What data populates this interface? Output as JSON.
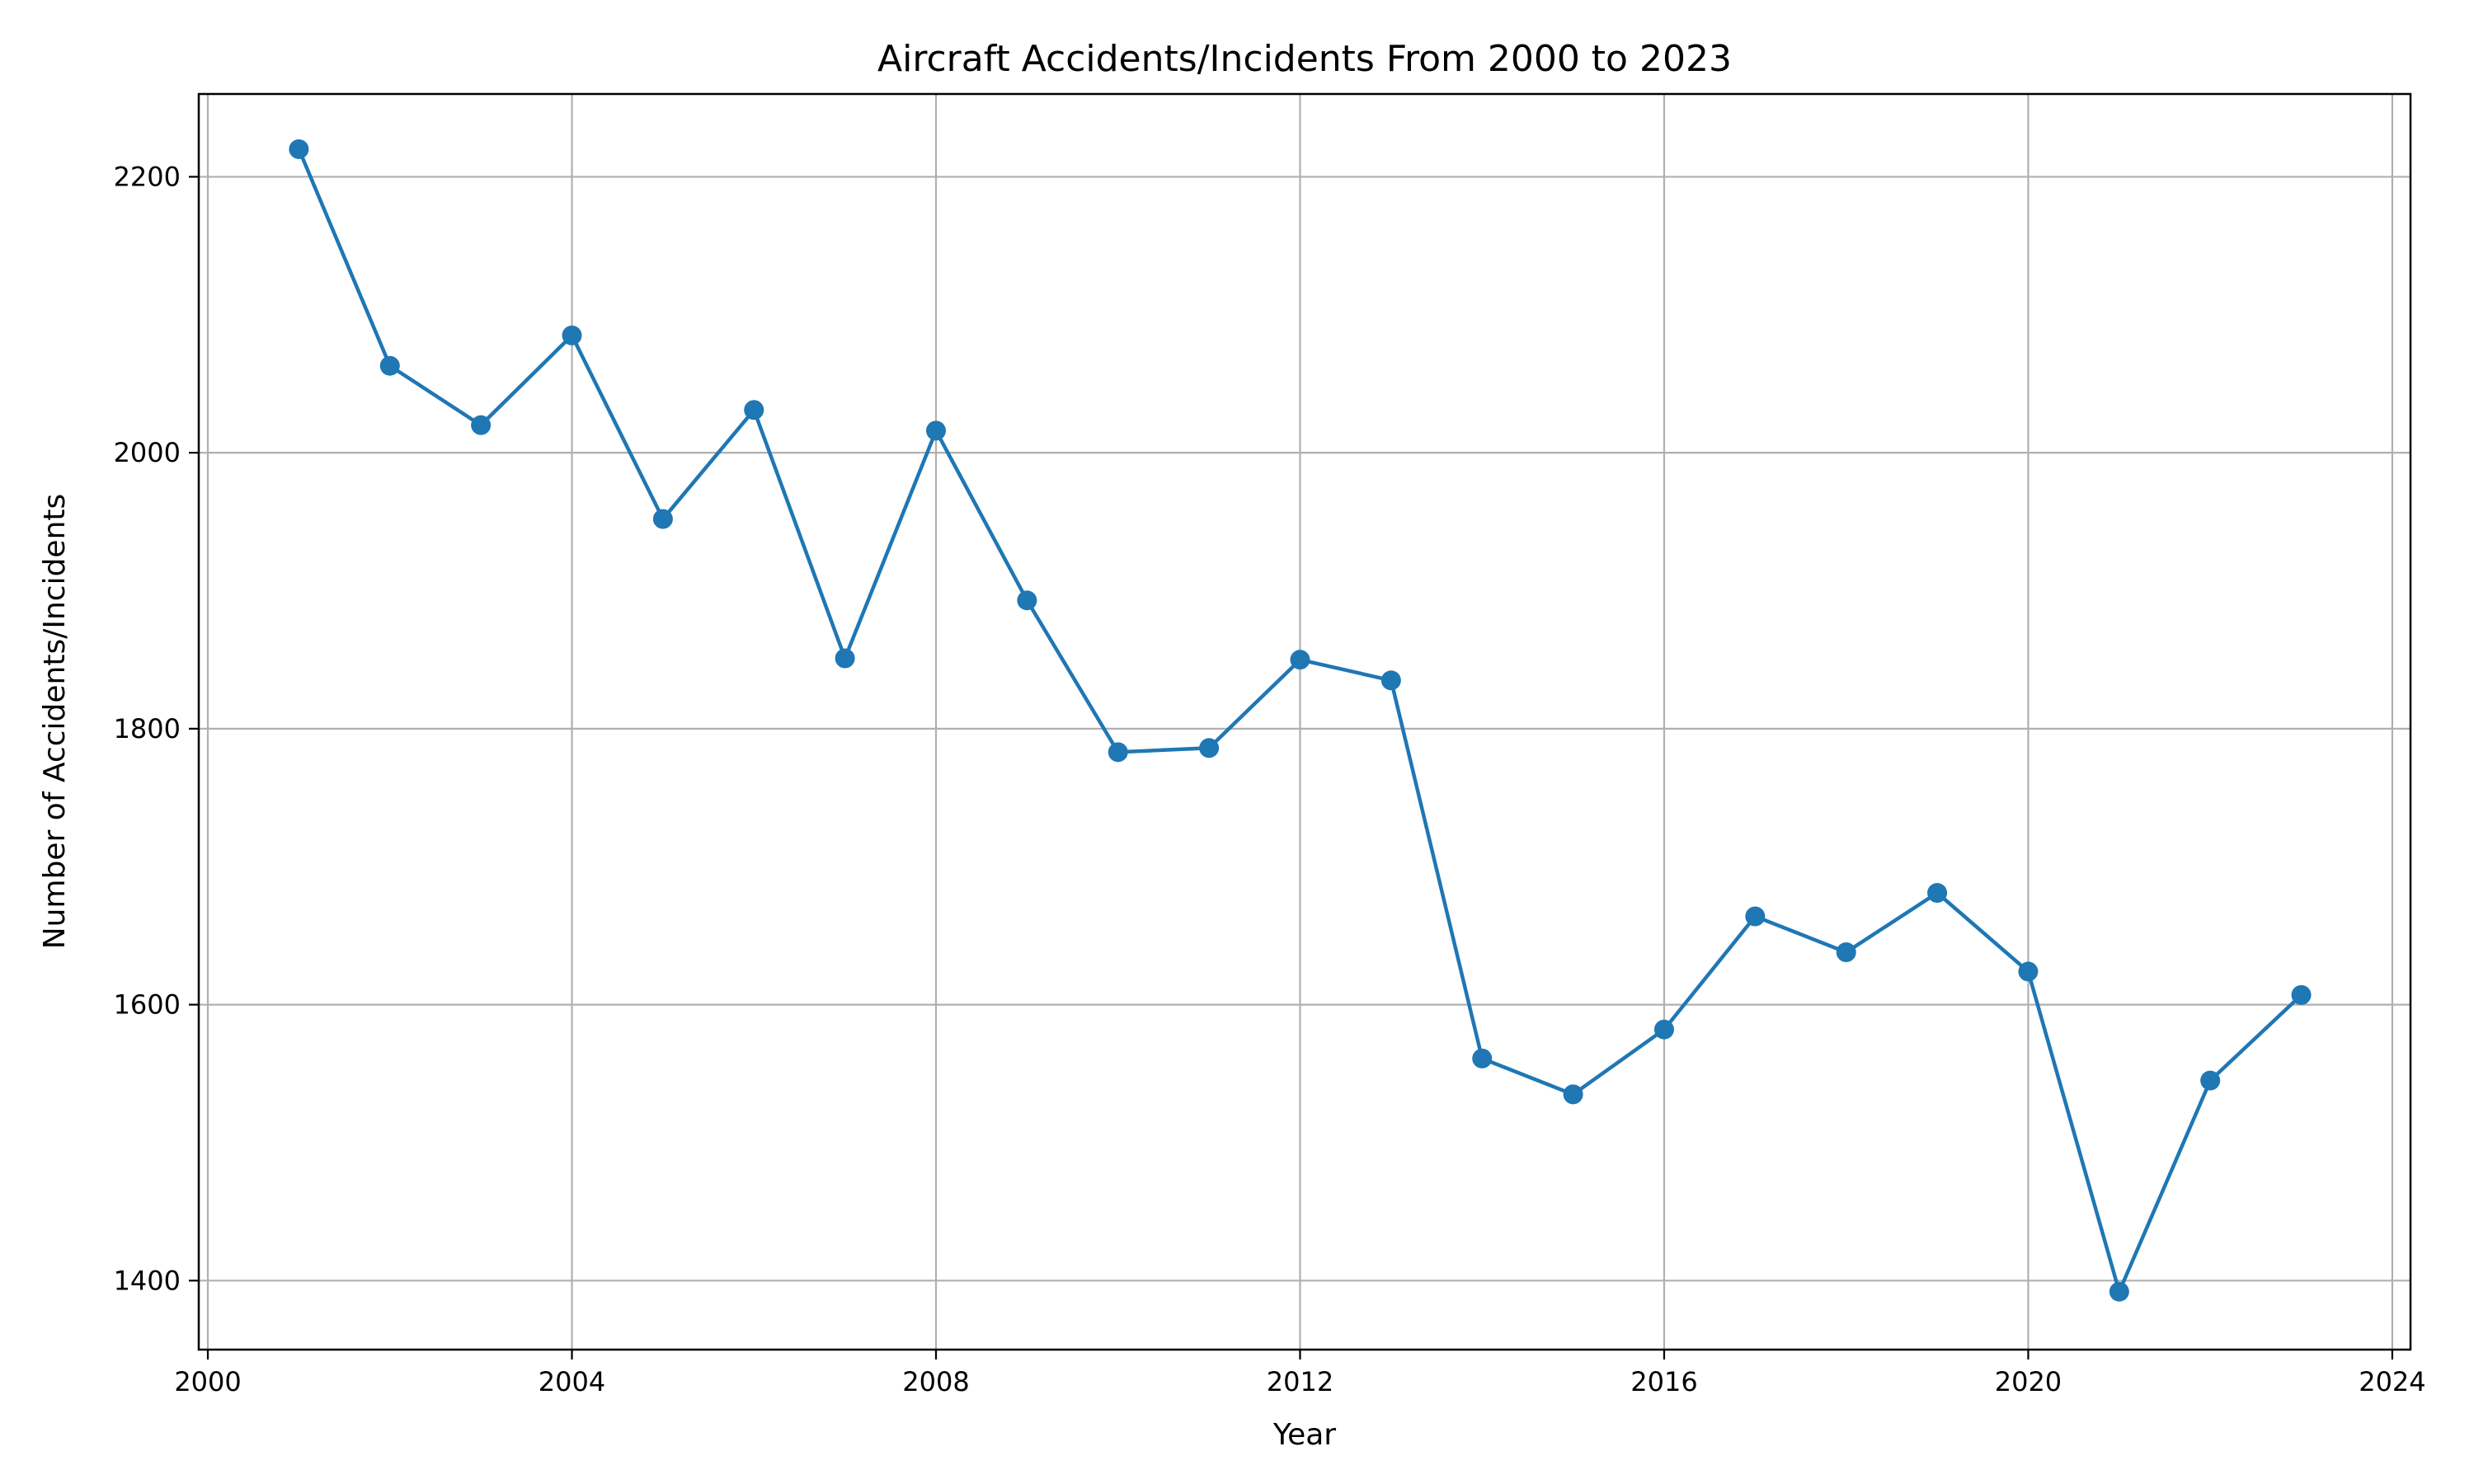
{
  "chart_data": {
    "type": "line",
    "title": "Aircraft Accidents/Incidents From 2000 to 2023",
    "xlabel": "Year",
    "ylabel": "Number of Accidents/Incidents",
    "x": [
      2001,
      2002,
      2003,
      2004,
      2005,
      2006,
      2007,
      2008,
      2009,
      2010,
      2011,
      2012,
      2013,
      2014,
      2015,
      2016,
      2017,
      2018,
      2019,
      2020,
      2021,
      2022,
      2023
    ],
    "series": [
      {
        "values": [
          2220,
          2063,
          2020,
          2085,
          1952,
          2031,
          1851,
          2016,
          1893,
          1783,
          1786,
          1850,
          1835,
          1561,
          1535,
          1582,
          1664,
          1638,
          1681,
          1624,
          1392,
          1545,
          1607
        ],
        "color": "#1f77b4",
        "marker": "circle"
      }
    ],
    "xlim": [
      1999.9,
      2024.2
    ],
    "ylim": [
      1350,
      2260
    ],
    "xticks": [
      2000,
      2004,
      2008,
      2012,
      2016,
      2020,
      2024
    ],
    "yticks": [
      1400,
      1600,
      1800,
      2000,
      2200
    ],
    "grid": true,
    "grid_color": "#b0b0b0",
    "line_color": "#1f77b4"
  }
}
